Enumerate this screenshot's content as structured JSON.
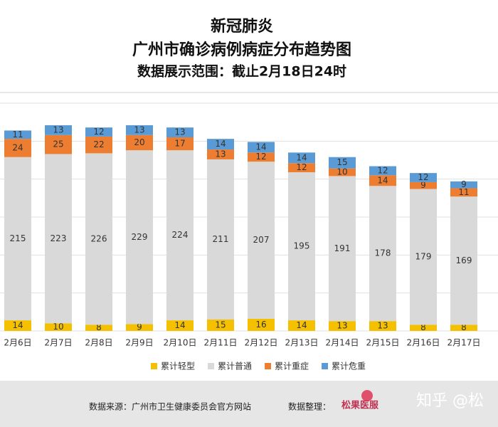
{
  "header": {
    "title": "新冠肺炎",
    "subtitle": "广州市确诊病例病症分布趋势图",
    "range": "数据展示范围：截止2月18日24时"
  },
  "chart_data": {
    "type": "stacked_bar",
    "categories": [
      "2月6日",
      "2月7日",
      "2月8日",
      "2月9日",
      "2月10日",
      "2月11日",
      "2月12日",
      "2月13日",
      "2月14日",
      "2月15日",
      "2月16日",
      "2月17日"
    ],
    "series": [
      {
        "name": "累计轻型",
        "color": "#f5c000",
        "values": [
          14,
          10,
          8,
          9,
          14,
          15,
          16,
          14,
          13,
          13,
          8,
          8
        ]
      },
      {
        "name": "累计普通",
        "color": "#d9d9d9",
        "values": [
          215,
          223,
          226,
          229,
          224,
          211,
          207,
          195,
          191,
          178,
          179,
          169
        ]
      },
      {
        "name": "累计重症",
        "color": "#ed7d31",
        "values": [
          24,
          25,
          22,
          20,
          17,
          13,
          12,
          12,
          10,
          14,
          9,
          11
        ]
      },
      {
        "name": "累计危重",
        "color": "#5b9bd5",
        "values": [
          11,
          13,
          12,
          13,
          13,
          14,
          14,
          14,
          15,
          12,
          12,
          9
        ]
      }
    ],
    "ylim": [
      0,
      300
    ],
    "yticks": [
      0,
      50,
      100,
      150,
      200,
      250,
      300
    ],
    "grid": true,
    "legend": "bottom"
  },
  "footer": {
    "source": "数据来源：广州市卫生健康委员会官方网站",
    "organizer": "数据整理：",
    "logo": "松果医服",
    "watermark": "知乎 @松"
  }
}
